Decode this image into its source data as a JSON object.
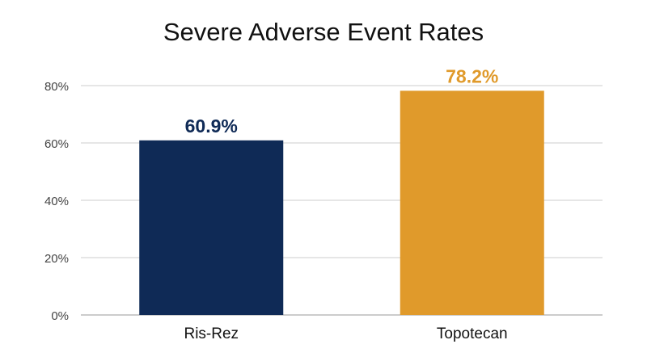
{
  "chart_data": {
    "type": "bar",
    "title": "Severe Adverse Event Rates",
    "categories": [
      "Ris-Rez",
      "Topotecan"
    ],
    "values": [
      60.9,
      78.2
    ],
    "data_labels": [
      "60.9%",
      "78.2%"
    ],
    "bar_colors": [
      "#0f2a56",
      "#e09a2b"
    ],
    "ylim": [
      0,
      80
    ],
    "yticks": [
      "0%",
      "20%",
      "40%",
      "60%",
      "80%"
    ],
    "ytick_values": [
      0,
      20,
      40,
      60,
      80
    ],
    "grid": true,
    "legend": "none",
    "xlabel": "",
    "ylabel": ""
  }
}
